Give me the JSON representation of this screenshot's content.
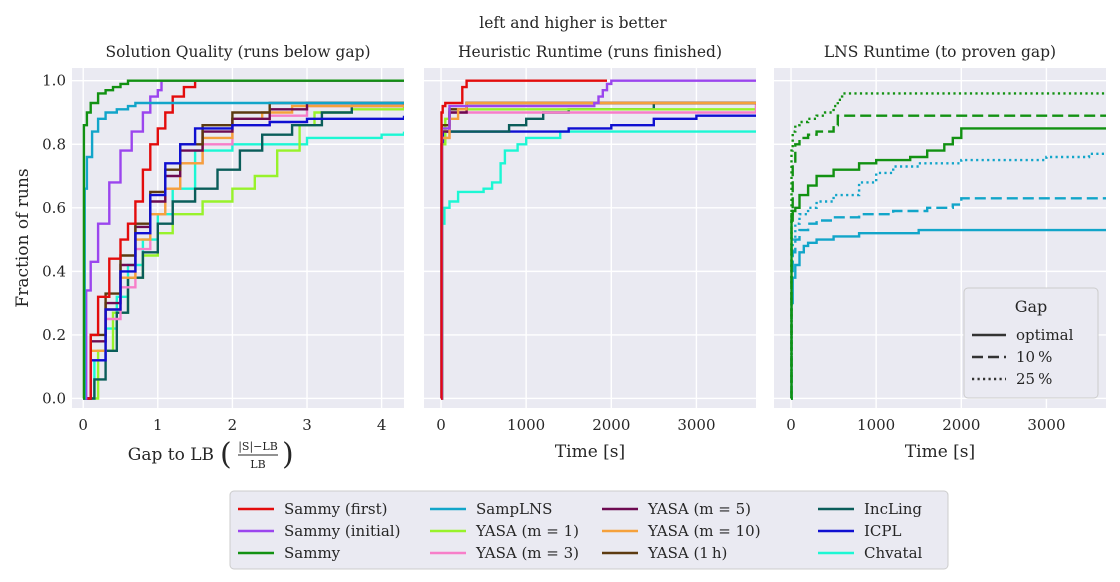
{
  "suptitle": "left and higher is better",
  "colors": {
    "panel_bg": "#eaeaf2",
    "grid": "#ffffff"
  },
  "chart_data": [
    {
      "type": "line",
      "title": "Solution Quality (runs below gap)",
      "xlabel": "Gap to LB",
      "xlabel_math": {
        "numerator": "|S|−LB",
        "denominator": "LB"
      },
      "ylabel": "Fraction of runs",
      "xlim": [
        -0.15,
        4.3
      ],
      "ylim": [
        -0.03,
        1.04
      ],
      "xticks": [
        0,
        1,
        2,
        3,
        4
      ],
      "yticks": [
        0.0,
        0.2,
        0.4,
        0.6,
        0.8,
        1.0
      ],
      "xtick_labels": [
        "0",
        "1",
        "2",
        "3",
        "4"
      ],
      "ytick_labels": [
        "0.0",
        "0.2",
        "0.4",
        "0.6",
        "0.8",
        "1.0"
      ],
      "grid": true,
      "series": [
        {
          "name": "Chvatal",
          "color": "#1cf7d4",
          "style": "solid",
          "x": [
            0,
            0.15,
            0.3,
            0.45,
            0.6,
            0.8,
            1.0,
            1.2,
            1.5,
            2.0,
            2.5,
            3.0,
            3.5,
            4.0,
            4.3
          ],
          "y": [
            0,
            0.12,
            0.22,
            0.32,
            0.42,
            0.5,
            0.58,
            0.66,
            0.78,
            0.8,
            0.8,
            0.82,
            0.82,
            0.83,
            0.84
          ]
        },
        {
          "name": "YASA (m = 1)",
          "color": "#98f22b",
          "style": "solid",
          "x": [
            0,
            0.2,
            0.4,
            0.6,
            0.8,
            1.0,
            1.2,
            1.6,
            2.0,
            2.3,
            2.6,
            2.9,
            3.1,
            3.6,
            4.3
          ],
          "y": [
            0,
            0.15,
            0.27,
            0.38,
            0.45,
            0.52,
            0.58,
            0.62,
            0.66,
            0.7,
            0.78,
            0.86,
            0.9,
            0.91,
            0.92
          ]
        },
        {
          "name": "IncLing",
          "color": "#0a5d5a",
          "style": "solid",
          "x": [
            0,
            0.15,
            0.3,
            0.45,
            0.6,
            0.8,
            1.0,
            1.2,
            1.5,
            1.8,
            2.1,
            2.4,
            2.8,
            3.2,
            3.6,
            4.3
          ],
          "y": [
            0,
            0.06,
            0.15,
            0.27,
            0.38,
            0.46,
            0.55,
            0.62,
            0.66,
            0.72,
            0.78,
            0.83,
            0.86,
            0.9,
            0.92,
            0.93
          ]
        },
        {
          "name": "YASA (m = 3)",
          "color": "#f77ec9",
          "style": "solid",
          "x": [
            0,
            0.1,
            0.3,
            0.5,
            0.7,
            0.9,
            1.1,
            1.3,
            1.6,
            2.0,
            2.5,
            3.0,
            4.3
          ],
          "y": [
            0,
            0.12,
            0.25,
            0.35,
            0.47,
            0.58,
            0.66,
            0.74,
            0.8,
            0.86,
            0.89,
            0.92,
            0.93
          ]
        },
        {
          "name": "YASA (m = 10)",
          "color": "#f5a13c",
          "style": "solid",
          "x": [
            0,
            0.1,
            0.3,
            0.5,
            0.7,
            0.9,
            1.1,
            1.3,
            1.6,
            2.0,
            2.4,
            2.8,
            4.3
          ],
          "y": [
            0,
            0.15,
            0.28,
            0.38,
            0.5,
            0.58,
            0.66,
            0.74,
            0.82,
            0.88,
            0.9,
            0.92,
            0.93
          ]
        },
        {
          "name": "YASA (m = 5)",
          "color": "#6d0a51",
          "style": "solid",
          "x": [
            0,
            0.1,
            0.3,
            0.5,
            0.7,
            0.9,
            1.1,
            1.3,
            1.6,
            2.0,
            2.5,
            3.0,
            4.3
          ],
          "y": [
            0,
            0.18,
            0.3,
            0.42,
            0.54,
            0.62,
            0.7,
            0.78,
            0.84,
            0.88,
            0.91,
            0.93,
            0.93
          ]
        },
        {
          "name": "YASA (1 h)",
          "color": "#5c3a10",
          "style": "solid",
          "x": [
            0,
            0.1,
            0.3,
            0.5,
            0.7,
            0.9,
            1.1,
            1.3,
            1.6,
            2.0,
            2.5,
            4.3
          ],
          "y": [
            0,
            0.2,
            0.33,
            0.45,
            0.55,
            0.65,
            0.72,
            0.8,
            0.86,
            0.9,
            0.93,
            0.93
          ]
        },
        {
          "name": "ICPL",
          "color": "#0f0fd1",
          "style": "solid",
          "x": [
            0,
            0.1,
            0.3,
            0.5,
            0.7,
            0.9,
            1.1,
            1.3,
            1.5,
            2.0,
            2.5,
            3.0,
            4.3
          ],
          "y": [
            0,
            0.12,
            0.28,
            0.4,
            0.52,
            0.64,
            0.74,
            0.8,
            0.85,
            0.86,
            0.87,
            0.88,
            0.89
          ]
        },
        {
          "name": "Sammy (first)",
          "color": "#e30c0c",
          "style": "solid",
          "x": [
            0,
            0.1,
            0.2,
            0.35,
            0.5,
            0.6,
            0.7,
            0.8,
            0.9,
            1.0,
            1.1,
            1.2,
            1.35,
            1.5,
            4.3
          ],
          "y": [
            0,
            0.2,
            0.32,
            0.44,
            0.5,
            0.55,
            0.62,
            0.72,
            0.8,
            0.85,
            0.9,
            0.95,
            0.98,
            1.0,
            1.0
          ]
        },
        {
          "name": "Sammy (initial)",
          "color": "#9b45ee",
          "style": "solid",
          "x": [
            0,
            0.04,
            0.1,
            0.2,
            0.35,
            0.5,
            0.65,
            0.8,
            0.9,
            1.0,
            1.05,
            2.0,
            4.3
          ],
          "y": [
            0,
            0.34,
            0.43,
            0.55,
            0.68,
            0.78,
            0.84,
            0.9,
            0.95,
            0.97,
            1.0,
            1.0,
            1.0
          ]
        },
        {
          "name": "SampLNS",
          "color": "#12a5c9",
          "style": "solid",
          "x": [
            0,
            0.02,
            0.05,
            0.12,
            0.2,
            0.3,
            0.45,
            0.6,
            0.7,
            4.3
          ],
          "y": [
            0,
            0.66,
            0.76,
            0.84,
            0.88,
            0.9,
            0.91,
            0.92,
            0.93,
            0.93
          ]
        },
        {
          "name": "Sammy",
          "color": "#129112",
          "style": "solid",
          "x": [
            0,
            0.01,
            0.05,
            0.1,
            0.2,
            0.3,
            0.4,
            0.5,
            0.6,
            4.3
          ],
          "y": [
            0,
            0.86,
            0.9,
            0.93,
            0.96,
            0.97,
            0.98,
            0.99,
            1.0,
            1.0
          ]
        }
      ]
    },
    {
      "type": "line",
      "title": "Heuristic Runtime (runs finished)",
      "xlabel": "Time [s]",
      "xlim": [
        -200,
        3700
      ],
      "ylim": [
        -0.03,
        1.04
      ],
      "xticks": [
        0,
        1000,
        2000,
        3000
      ],
      "yticks": [
        0.0,
        0.2,
        0.4,
        0.6,
        0.8,
        1.0
      ],
      "xtick_labels": [
        "0",
        "1000",
        "2000",
        "3000"
      ],
      "grid": true,
      "series": [
        {
          "name": "Chvatal",
          "color": "#1cf7d4",
          "style": "solid",
          "x": [
            0,
            15,
            40,
            100,
            200,
            300,
            400,
            500,
            600,
            700,
            750,
            800,
            900,
            1000,
            1200,
            1400,
            3700
          ],
          "y": [
            0,
            0.55,
            0.6,
            0.62,
            0.65,
            0.65,
            0.65,
            0.66,
            0.68,
            0.74,
            0.78,
            0.78,
            0.8,
            0.82,
            0.82,
            0.84,
            0.84
          ]
        },
        {
          "name": "ICPL",
          "color": "#0f0fd1",
          "style": "solid",
          "x": [
            0,
            5,
            30,
            100,
            500,
            1000,
            1500,
            2000,
            2500,
            3000,
            3700
          ],
          "y": [
            0,
            0.8,
            0.84,
            0.84,
            0.84,
            0.84,
            0.85,
            0.86,
            0.88,
            0.89,
            0.89
          ]
        },
        {
          "name": "IncLing",
          "color": "#0a5d5a",
          "style": "solid",
          "x": [
            0,
            10,
            50,
            200,
            400,
            600,
            800,
            1000,
            1200,
            1500,
            2500,
            3700
          ],
          "y": [
            0,
            0.8,
            0.84,
            0.84,
            0.84,
            0.84,
            0.86,
            0.88,
            0.9,
            0.91,
            0.93,
            0.93
          ]
        },
        {
          "name": "YASA (m = 1)",
          "color": "#98f22b",
          "style": "solid",
          "x": [
            0,
            10,
            50,
            100,
            3700
          ],
          "y": [
            0,
            0.8,
            0.88,
            0.91,
            0.92
          ]
        },
        {
          "name": "YASA (m = 3)",
          "color": "#f77ec9",
          "style": "solid",
          "x": [
            0,
            10,
            100,
            3700
          ],
          "y": [
            0,
            0.82,
            0.9,
            0.93
          ]
        },
        {
          "name": "YASA (m = 5)",
          "color": "#6d0a51",
          "style": "solid",
          "x": [
            0,
            10,
            100,
            300,
            3700
          ],
          "y": [
            0,
            0.84,
            0.9,
            0.93,
            0.93
          ]
        },
        {
          "name": "YASA (1 h)",
          "color": "#5c3a10",
          "style": "solid",
          "x": [
            0,
            10,
            100,
            300,
            3700
          ],
          "y": [
            0,
            0.86,
            0.91,
            0.93,
            0.93
          ]
        },
        {
          "name": "YASA (m = 10)",
          "color": "#f5a13c",
          "style": "solid",
          "x": [
            0,
            10,
            100,
            200,
            300,
            3700
          ],
          "y": [
            0,
            0.82,
            0.88,
            0.91,
            0.93,
            0.93
          ]
        },
        {
          "name": "Sammy (initial)",
          "color": "#9b45ee",
          "style": "solid",
          "x": [
            0,
            10,
            100,
            1800,
            1850,
            1900,
            1950,
            2000,
            3700
          ],
          "y": [
            0,
            0.85,
            0.92,
            0.93,
            0.95,
            0.97,
            0.99,
            1.0,
            1.0
          ]
        },
        {
          "name": "Sammy (first)",
          "color": "#e30c0c",
          "style": "solid",
          "x": [
            0,
            5,
            20,
            50,
            100,
            200,
            250,
            300,
            1950
          ],
          "y": [
            0,
            0.9,
            0.92,
            0.93,
            0.93,
            0.93,
            0.98,
            1.0,
            1.0
          ]
        }
      ]
    },
    {
      "type": "line",
      "title": "LNS Runtime (to proven gap)",
      "xlabel": "Time [s]",
      "xlim": [
        -200,
        3700
      ],
      "ylim": [
        -0.03,
        1.04
      ],
      "xticks": [
        0,
        1000,
        2000,
        3000
      ],
      "yticks": [
        0.0,
        0.2,
        0.4,
        0.6,
        0.8,
        1.0
      ],
      "xtick_labels": [
        "0",
        "1000",
        "2000",
        "3000"
      ],
      "grid": true,
      "legend": {
        "title": "Gap",
        "location": "lower right",
        "entries": [
          {
            "label": "optimal",
            "style": "solid"
          },
          {
            "label": "10 %",
            "style": "dashed"
          },
          {
            "label": "25 %",
            "style": "dotted"
          }
        ]
      },
      "series": [
        {
          "name": "SampLNS optimal",
          "color": "#12a5c9",
          "style": "solid",
          "x": [
            0,
            5,
            20,
            50,
            100,
            150,
            200,
            300,
            500,
            800,
            1200,
            1500,
            1800,
            2000,
            2500,
            3000,
            3700
          ],
          "y": [
            0,
            0.3,
            0.38,
            0.42,
            0.46,
            0.48,
            0.49,
            0.5,
            0.51,
            0.52,
            0.52,
            0.53,
            0.53,
            0.53,
            0.53,
            0.53,
            0.53
          ]
        },
        {
          "name": "SampLNS 10 %",
          "color": "#12a5c9",
          "style": "dashed",
          "x": [
            0,
            5,
            20,
            50,
            100,
            200,
            300,
            500,
            800,
            1200,
            1600,
            1900,
            2000,
            3700
          ],
          "y": [
            0,
            0.38,
            0.46,
            0.5,
            0.53,
            0.55,
            0.56,
            0.57,
            0.58,
            0.59,
            0.6,
            0.61,
            0.63,
            0.63
          ]
        },
        {
          "name": "SampLNS 25 %",
          "color": "#12a5c9",
          "style": "dotted",
          "x": [
            0,
            5,
            20,
            50,
            100,
            200,
            300,
            500,
            800,
            1000,
            1200,
            1500,
            2000,
            2500,
            3000,
            3500,
            3700
          ],
          "y": [
            0,
            0.42,
            0.5,
            0.55,
            0.58,
            0.6,
            0.62,
            0.64,
            0.68,
            0.71,
            0.73,
            0.74,
            0.75,
            0.75,
            0.76,
            0.77,
            0.77
          ]
        },
        {
          "name": "Sammy optimal",
          "color": "#129112",
          "style": "solid",
          "x": [
            0,
            5,
            20,
            50,
            100,
            200,
            300,
            500,
            800,
            1000,
            1400,
            1600,
            1800,
            1900,
            2000,
            2500,
            3000,
            3700
          ],
          "y": [
            0,
            0.56,
            0.59,
            0.6,
            0.64,
            0.67,
            0.7,
            0.72,
            0.74,
            0.75,
            0.76,
            0.78,
            0.8,
            0.82,
            0.85,
            0.85,
            0.85,
            0.85
          ]
        },
        {
          "name": "Sammy 10 %",
          "color": "#129112",
          "style": "dashed",
          "x": [
            0,
            5,
            20,
            50,
            100,
            200,
            300,
            400,
            500,
            550,
            600,
            3700
          ],
          "y": [
            0,
            0.58,
            0.74,
            0.8,
            0.82,
            0.83,
            0.84,
            0.84,
            0.86,
            0.89,
            0.89,
            0.89
          ]
        },
        {
          "name": "Sammy 25 %",
          "color": "#129112",
          "style": "dotted",
          "x": [
            0,
            5,
            20,
            50,
            100,
            200,
            300,
            400,
            500,
            550,
            600,
            3700
          ],
          "y": [
            0,
            0.78,
            0.84,
            0.86,
            0.87,
            0.88,
            0.89,
            0.9,
            0.92,
            0.94,
            0.96,
            0.96
          ]
        }
      ]
    }
  ],
  "bottom_legend": {
    "entries": [
      {
        "label": "Sammy (first)",
        "color": "#e30c0c"
      },
      {
        "label": "Sammy (initial)",
        "color": "#9b45ee"
      },
      {
        "label": "Sammy",
        "color": "#129112"
      },
      {
        "label": "SampLNS",
        "color": "#12a5c9"
      },
      {
        "label": "YASA (m = 1)",
        "color": "#98f22b"
      },
      {
        "label": "YASA (m = 3)",
        "color": "#f77ec9"
      },
      {
        "label": "YASA (m = 5)",
        "color": "#6d0a51"
      },
      {
        "label": "YASA (m = 10)",
        "color": "#f5a13c"
      },
      {
        "label": "YASA (1 h)",
        "color": "#5c3a10"
      },
      {
        "label": "IncLing",
        "color": "#0a5d5a"
      },
      {
        "label": "ICPL",
        "color": "#0f0fd1"
      },
      {
        "label": "Chvatal",
        "color": "#1cf7d4"
      }
    ]
  }
}
